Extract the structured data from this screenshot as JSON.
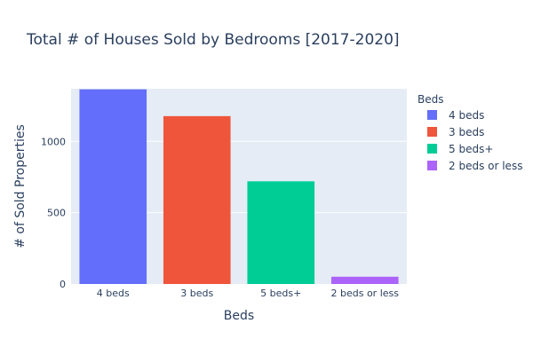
{
  "chart_data": {
    "type": "bar",
    "title": "Total # of Houses Sold by Bedrooms [2017-2020]",
    "xlabel": "Beds",
    "ylabel": "# of Sold Properties",
    "categories": [
      "4 beds",
      "3 beds",
      "5 beds+",
      "2 beds or less"
    ],
    "values": [
      1365,
      1177,
      720,
      51
    ],
    "colors": [
      "#636efa",
      "#ef553b",
      "#00cc96",
      "#ab63fa"
    ],
    "ylim": [
      0,
      1369
    ],
    "yticks": [
      0,
      500,
      1000
    ],
    "grid": true,
    "legend": {
      "title": "Beds",
      "position": "right",
      "entries": [
        "4 beds",
        "3 beds",
        "5 beds+",
        "2 beds or less"
      ]
    }
  }
}
